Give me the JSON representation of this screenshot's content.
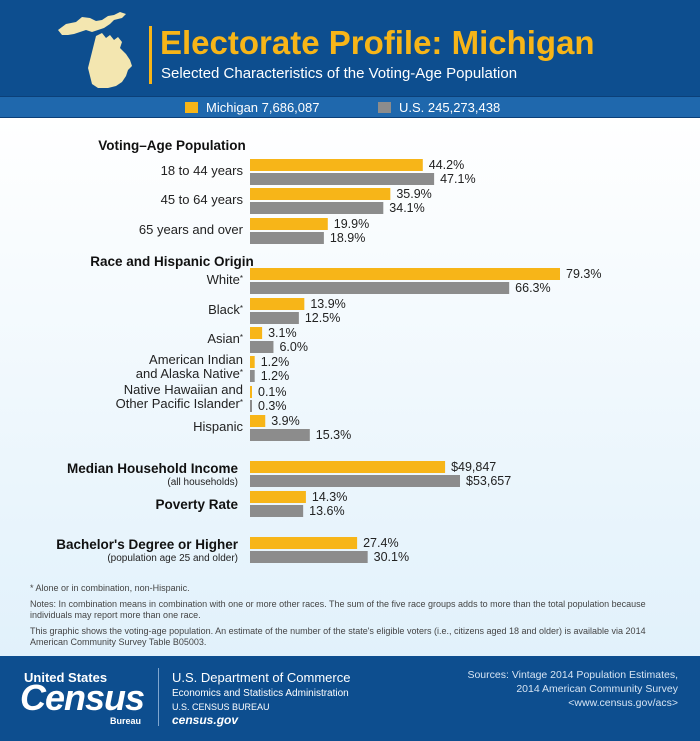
{
  "header": {
    "title": "Electorate Profile: Michigan",
    "subtitle": "Selected Characteristics of the Voting-Age Population"
  },
  "legend": {
    "michigan": "Michigan 7,686,087",
    "us": "U.S. 245,273,438"
  },
  "colors": {
    "michigan": "#f7b518",
    "us": "#8c8c8c",
    "header": "#0d4e8f",
    "accent": "#f7b518"
  },
  "chart_data": {
    "type": "bar",
    "orientation": "horizontal",
    "series": [
      {
        "name": "Michigan 7,686,087"
      },
      {
        "name": "U.S. 245,273,438"
      }
    ],
    "sections": [
      {
        "title": "Voting–Age Population",
        "rows": [
          {
            "label": "18 to 44 years",
            "values": [
              44.2,
              47.1
            ],
            "labels": [
              "44.2%",
              "47.1%"
            ]
          },
          {
            "label": "45 to 64 years",
            "values": [
              35.9,
              34.1
            ],
            "labels": [
              "35.9%",
              "34.1%"
            ]
          },
          {
            "label": "65 years and over",
            "values": [
              19.9,
              18.9
            ],
            "labels": [
              "19.9%",
              "18.9%"
            ]
          }
        ]
      },
      {
        "title": "Race and Hispanic Origin",
        "rows": [
          {
            "label": "White",
            "asterisk": true,
            "values": [
              79.3,
              66.3
            ],
            "labels": [
              "79.3%",
              "66.3%"
            ]
          },
          {
            "label": "Black",
            "asterisk": true,
            "values": [
              13.9,
              12.5
            ],
            "labels": [
              "13.9%",
              "12.5%"
            ]
          },
          {
            "label": "Asian",
            "asterisk": true,
            "values": [
              3.1,
              6.0
            ],
            "labels": [
              "3.1%",
              "6.0%"
            ]
          },
          {
            "label": "American Indian",
            "label2": "and Alaska Native",
            "asterisk": true,
            "values": [
              1.2,
              1.2
            ],
            "labels": [
              "1.2%",
              "1.2%"
            ]
          },
          {
            "label": "Native Hawaiian and",
            "label2": "Other Pacific Islander",
            "asterisk": true,
            "values": [
              0.1,
              0.3
            ],
            "labels": [
              "0.1%",
              "0.3%"
            ]
          },
          {
            "label": "Hispanic",
            "values": [
              3.9,
              15.3
            ],
            "labels": [
              "3.9%",
              "15.3%"
            ]
          }
        ]
      },
      {
        "title": "Median Household Income",
        "subtitle": "(all households)",
        "rows": [
          {
            "values": [
              49847,
              53657
            ],
            "labels": [
              "$49,847",
              "$53,657"
            ]
          }
        ]
      },
      {
        "title": "Poverty Rate",
        "rows": [
          {
            "values": [
              14.3,
              13.6
            ],
            "labels": [
              "14.3%",
              "13.6%"
            ]
          }
        ]
      },
      {
        "title": "Bachelor's Degree or Higher",
        "subtitle": "(population age 25 and older)",
        "rows": [
          {
            "values": [
              27.4,
              30.1
            ],
            "labels": [
              "27.4%",
              "30.1%"
            ]
          }
        ]
      }
    ]
  },
  "notes": {
    "asterisk": "* Alone or in combination, non-Hispanic.",
    "combination": "Notes: In combination means in combination with one or more other races. The sum of the five race groups adds to more than the total population because individuals may report more than one race.",
    "graphic": "This graphic shows the voting-age population. An estimate of the number of the state's eligible voters (i.e., citizens aged 18 and older) is available via 2014 American Community Survey Table B05003."
  },
  "footer": {
    "logo_top": "United States",
    "logo_main": "Census",
    "logo_bureau": "Bureau",
    "dept": "U.S. Department of Commerce",
    "esa": "Economics and Statistics Administration",
    "bureau": "U.S. CENSUS BUREAU",
    "site": "census.gov",
    "sources_1": "Sources: Vintage 2014 Population Estimates,",
    "sources_2": "2014 American Community Survey",
    "sources_3": "<www.census.gov/acs>"
  }
}
